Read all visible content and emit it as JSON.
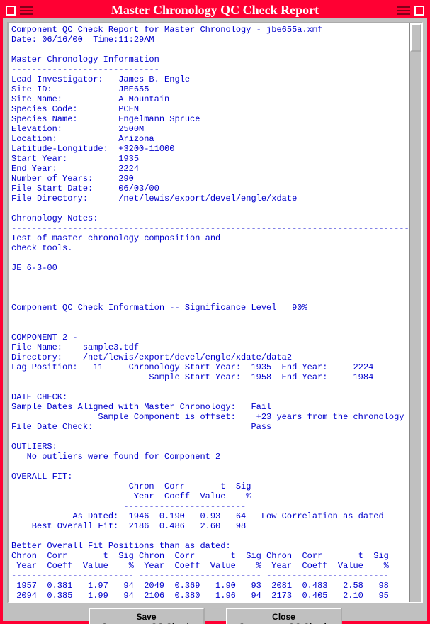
{
  "window": {
    "title": "Master Chronology QC Check Report"
  },
  "report": {
    "header_line": "Component QC Check Report for Master Chronology - jbe655a.xmf",
    "date_line": "Date: 06/16/00  Time:11:29AM",
    "section1_title": "Master Chronology Information",
    "section1_rule": "-----------------------------",
    "info": {
      "lead_investigator": "Lead Investigator:   James B. Engle",
      "site_id": "Site ID:             JBE655",
      "site_name": "Site Name:           A Mountain",
      "species_code": "Species Code:        PCEN",
      "species_name": "Species Name:        Engelmann Spruce",
      "elevation": "Elevation:           2500M",
      "location": "Location:            Arizona",
      "latlon": "Latitude-Longitude:  +3200-11000",
      "start_year": "Start Year:          1935",
      "end_year": "End Year:            2224",
      "num_years": "Number of Years:     290",
      "file_start": "File Start Date:     06/03/00",
      "file_dir": "File Directory:      /net/lewis/export/devel/engle/xdate"
    },
    "notes_title": "Chronology Notes:",
    "notes_rule": "-------------------------------------------------------------------------------",
    "notes_body1": "Test of master chronology composition and",
    "notes_body2": "check tools.",
    "notes_sig": "JE 6-3-00",
    "qc_info_line": "Component QC Check Information -- Significance Level = 90%",
    "comp2_title": "COMPONENT 2 -",
    "comp2": {
      "file_name": "File Name:    sample3.tdf",
      "directory": "Directory:    /net/lewis/export/devel/engle/xdate/data2",
      "lag": "Lag Position:   11     Chronology Start Year:  1935  End Year:     2224",
      "sample": "                           Sample Start Year:  1958  End Year:     1984"
    },
    "datecheck_title": "DATE CHECK:",
    "datecheck1": "Sample Dates Aligned with Master Chronology:   Fail",
    "datecheck2": "                 Sample Component is offset:    +23 years from the chronology",
    "datecheck3": "File Date Check:                               Pass",
    "outliers_title": "OUTLIERS:",
    "outliers_body": "   No outliers were found for Component 2",
    "overallfit_title": "OVERALL FIT:",
    "overallfit_hdr1": "                       Chron  Corr       t  Sig",
    "overallfit_hdr2": "                        Year  Coeff  Value    %",
    "overallfit_rule": "                      ------------------------",
    "overallfit_asdated": "            As Dated:  1946  0.190   0.93   64   Low Correlation as dated",
    "overallfit_best": "    Best Overall Fit:  2186  0.486   2.60   98",
    "betterfit_title": "Better Overall Fit Positions than as dated:",
    "betterfit_hdr1": "Chron  Corr       t  Sig Chron  Corr       t  Sig Chron  Corr       t  Sig",
    "betterfit_hdr2": " Year  Coeff  Value    %  Year  Coeff  Value    %  Year  Coeff  Value    %",
    "betterfit_rule": "------------------------ ------------------------ ------------------------",
    "betterfit_row1": " 1957  0.381   1.97   94  2049  0.369   1.90   93  2081  0.483   2.58   98",
    "betterfit_row2": " 2094  0.385   1.99   94  2106  0.380   1.96   94  2173  0.405   2.10   95"
  },
  "buttons": {
    "save": "Save\nComponent QC Check\nReport",
    "close": "Close\nComponent QC Check\nReport"
  }
}
